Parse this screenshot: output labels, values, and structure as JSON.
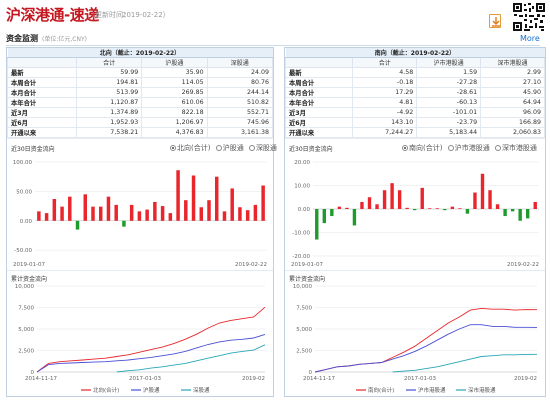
{
  "header": {
    "title": "沪深港通-速递",
    "update_label": "（更新时间：",
    "update_time": "2019-02-22）",
    "more": "More"
  },
  "section": {
    "title": "资金监测",
    "unit": "(单位:亿元,CNY)"
  },
  "left": {
    "caption": "北向（截止：2019-02-22）",
    "columns": [
      "合计",
      "沪股通",
      "深股通"
    ],
    "rows": [
      {
        "label": "最新",
        "values": [
          "59.99",
          "35.90",
          "24.09"
        ]
      },
      {
        "label": "本周合计",
        "values": [
          "194.81",
          "114.05",
          "80.76"
        ]
      },
      {
        "label": "本月合计",
        "values": [
          "513.99",
          "269.85",
          "244.14"
        ]
      },
      {
        "label": "本年合计",
        "values": [
          "1,120.87",
          "610.06",
          "510.82"
        ]
      },
      {
        "label": "近3月",
        "values": [
          "1,374.89",
          "822.18",
          "552.71"
        ]
      },
      {
        "label": "近6月",
        "values": [
          "1,952.93",
          "1,206.97",
          "745.96"
        ]
      },
      {
        "label": "开通以来",
        "values": [
          "7,538.21",
          "4,376.83",
          "3,161.38"
        ]
      }
    ],
    "bar_title": "近30日资金流向",
    "radios": [
      "北向(合计)",
      "沪股通",
      "深股通"
    ],
    "bar_chart": {
      "type": "bar",
      "y_ticks": [
        "100.00",
        "50.00",
        "0.00",
        "-50.00"
      ],
      "ylim": [
        -60,
        100
      ],
      "x_start": "2019-01-07",
      "x_end": "2019-02-22",
      "values": [
        16,
        13,
        37,
        24,
        41,
        -15,
        45,
        24,
        24,
        41,
        27,
        -10,
        27,
        16,
        19,
        32,
        25,
        13,
        86,
        35,
        77,
        23,
        35,
        75,
        16,
        55,
        23,
        18,
        27,
        60
      ]
    },
    "line_title": "累计资金流向",
    "line_chart": {
      "type": "line",
      "y_ticks": [
        "10,000",
        "7,500",
        "5,000",
        "2,500",
        "0"
      ],
      "ylim": [
        0,
        10000
      ],
      "x_ticks": [
        "2014-11-17",
        "2017-01-03",
        "2019-02"
      ],
      "legend": [
        "北向(合计)",
        "沪股通",
        "深股通"
      ],
      "series": [
        {
          "name": "北向(合计)",
          "color": "#e8262c",
          "values": [
            0,
            1000,
            1200,
            1300,
            1400,
            1500,
            1600,
            1800,
            2000,
            2300,
            2600,
            2900,
            3300,
            3800,
            4400,
            5100,
            5700,
            6000,
            6200,
            6400,
            7538
          ]
        },
        {
          "name": "沪股通",
          "color": "#4a4fd6",
          "values": [
            0,
            850,
            1000,
            1050,
            1100,
            1150,
            1200,
            1300,
            1400,
            1550,
            1700,
            1900,
            2100,
            2400,
            2800,
            3200,
            3500,
            3700,
            3800,
            3950,
            4377
          ]
        },
        {
          "name": "深股通",
          "color": "#2aa6b6",
          "values": [
            null,
            null,
            null,
            null,
            null,
            null,
            null,
            0,
            150,
            250,
            450,
            600,
            800,
            1000,
            1300,
            1600,
            1900,
            2200,
            2400,
            2550,
            3161
          ]
        }
      ]
    }
  },
  "right": {
    "caption": "南向（截止：2019-02-22）",
    "columns": [
      "合计",
      "沪市港股通",
      "深市港股通"
    ],
    "rows": [
      {
        "label": "最新",
        "values": [
          "4.58",
          "1.59",
          "2.99"
        ]
      },
      {
        "label": "本周合计",
        "values": [
          "-0.18",
          "-27.28",
          "27.10"
        ]
      },
      {
        "label": "本月合计",
        "values": [
          "17.29",
          "-28.61",
          "45.90"
        ]
      },
      {
        "label": "本年合计",
        "values": [
          "4.81",
          "-60.13",
          "64.94"
        ]
      },
      {
        "label": "近3月",
        "values": [
          "-4.92",
          "-101.01",
          "96.09"
        ]
      },
      {
        "label": "近6月",
        "values": [
          "143.10",
          "-23.79",
          "166.89"
        ]
      },
      {
        "label": "开通以来",
        "values": [
          "7,244.27",
          "5,183.44",
          "2,060.83"
        ]
      }
    ],
    "bar_title": "近30日资金流向",
    "radios": [
      "南向(合计)",
      "沪市港股通",
      "深市港股通"
    ],
    "bar_chart": {
      "type": "bar",
      "y_ticks": [
        "20.00",
        "10.00",
        "0.00",
        "-10.00",
        "-20.00"
      ],
      "ylim": [
        -20,
        20
      ],
      "x_start": "2019-01-07",
      "x_end": "2019-02-22",
      "values": [
        -13,
        -6,
        -3,
        1,
        0.5,
        -7,
        3,
        5,
        2,
        8,
        11,
        8,
        0.5,
        -0.5,
        9,
        0.3,
        0.3,
        -0.5,
        1,
        0.3,
        -2,
        7,
        15,
        8,
        2,
        -3,
        -1,
        -5,
        -4,
        3
      ]
    },
    "line_title": "累计资金流向",
    "line_chart": {
      "type": "line",
      "y_ticks": [
        "10,000",
        "7,500",
        "5,000",
        "2,500",
        "0"
      ],
      "ylim": [
        0,
        10000
      ],
      "x_ticks": [
        "2014-11-17",
        "2017-01-03",
        "2019-02"
      ],
      "legend": [
        "南向(合计)",
        "沪市港股通",
        "深市港股通"
      ],
      "series": [
        {
          "name": "南向(合计)",
          "color": "#e8262c",
          "values": [
            0,
            300,
            600,
            700,
            900,
            1000,
            1100,
            1700,
            2300,
            3000,
            3900,
            4800,
            5700,
            6400,
            7200,
            7400,
            7300,
            7300,
            7200,
            7250,
            7244
          ]
        },
        {
          "name": "沪市港股通",
          "color": "#4a4fd6",
          "values": [
            0,
            300,
            600,
            700,
            900,
            1000,
            1100,
            1500,
            1900,
            2400,
            3000,
            3700,
            4400,
            5000,
            5500,
            5500,
            5300,
            5300,
            5200,
            5200,
            5183
          ]
        },
        {
          "name": "深市港股通",
          "color": "#2aa6b6",
          "values": [
            null,
            null,
            null,
            null,
            null,
            null,
            null,
            0,
            100,
            200,
            400,
            600,
            900,
            1200,
            1500,
            1800,
            1900,
            2000,
            2000,
            2050,
            2061
          ]
        }
      ]
    }
  }
}
